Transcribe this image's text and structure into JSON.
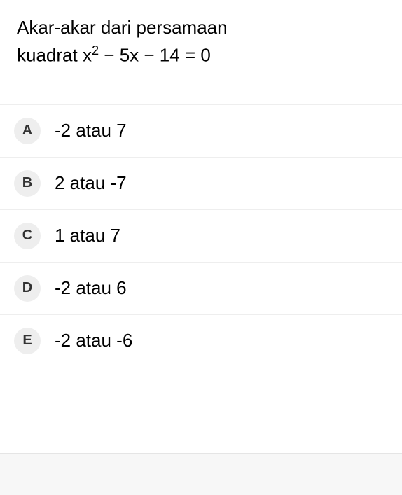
{
  "question": {
    "line1": "Akar-akar dari persamaan",
    "line2_prefix": "kuadrat x",
    "line2_exp": "2",
    "line2_suffix": " − 5x − 14 = 0"
  },
  "options": [
    {
      "letter": "A",
      "text": "-2 atau 7"
    },
    {
      "letter": "B",
      "text": "2 atau -7"
    },
    {
      "letter": "C",
      "text": "1 atau 7"
    },
    {
      "letter": "D",
      "text": "-2 atau 6"
    },
    {
      "letter": "E",
      "text": "-2 atau -6"
    }
  ],
  "styling": {
    "background_color": "#ffffff",
    "text_color": "#000000",
    "option_letter_bg": "#eeeeee",
    "option_letter_color": "#333333",
    "divider_color": "#eeeeee",
    "bottom_bar_bg": "#f7f7f7",
    "question_fontsize": 26,
    "option_fontsize": 26,
    "letter_fontsize": 20
  }
}
